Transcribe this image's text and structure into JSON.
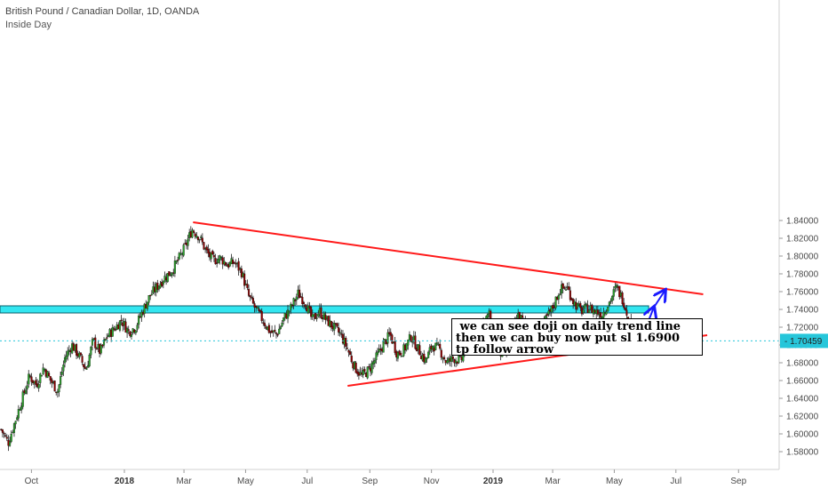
{
  "header": {
    "title": "British Pound / Canadian Dollar, 1D, OANDA",
    "subtitle": "Inside Day"
  },
  "note": {
    "lines": [
      " we can see doji on daily trend line",
      "then we can buy now put sl 1.6900",
      "tp follow arrow"
    ]
  },
  "colors": {
    "candle_up": "#2ca02c",
    "candle_down": "#8b0000",
    "trendline": "#ff1a1a",
    "zone_fill": "#33e6f0",
    "arrow": "#1a1aff",
    "price_badge": "#26c6da"
  },
  "chart_data": {
    "type": "candlestick",
    "title": "British Pound / Canadian Dollar, 1D, OANDA",
    "subtitle": "Inside Day",
    "ylim": [
      1.57,
      1.85
    ],
    "y_ticks": [
      "1.84000",
      "1.82000",
      "1.80000",
      "1.78000",
      "1.76000",
      "1.74000",
      "1.72000",
      "1.70000",
      "1.68000",
      "1.66000",
      "1.64000",
      "1.62000",
      "1.60000",
      "1.58000"
    ],
    "x_ticks": [
      {
        "label": "Oct",
        "date": "2017-10-01",
        "bold": false
      },
      {
        "label": "2018",
        "date": "2018-01-01",
        "bold": true
      },
      {
        "label": "Mar",
        "date": "2018-03-01",
        "bold": false
      },
      {
        "label": "May",
        "date": "2018-05-01",
        "bold": false
      },
      {
        "label": "Jul",
        "date": "2018-07-01",
        "bold": false
      },
      {
        "label": "Sep",
        "date": "2018-09-01",
        "bold": false
      },
      {
        "label": "Nov",
        "date": "2018-11-01",
        "bold": false
      },
      {
        "label": "2019",
        "date": "2019-01-01",
        "bold": true
      },
      {
        "label": "Mar",
        "date": "2019-03-01",
        "bold": false
      },
      {
        "label": "May",
        "date": "2019-05-01",
        "bold": false
      },
      {
        "label": "Jul",
        "date": "2019-07-01",
        "bold": false
      },
      {
        "label": "Sep",
        "date": "2019-09-01",
        "bold": false
      }
    ],
    "last_price": "1.70459",
    "close_path": [
      [
        "2017-09-01",
        1.605
      ],
      [
        "2017-09-08",
        1.59
      ],
      [
        "2017-09-15",
        1.615
      ],
      [
        "2017-09-22",
        1.64
      ],
      [
        "2017-09-29",
        1.665
      ],
      [
        "2017-10-06",
        1.655
      ],
      [
        "2017-10-13",
        1.675
      ],
      [
        "2017-10-20",
        1.66
      ],
      [
        "2017-10-27",
        1.648
      ],
      [
        "2017-11-03",
        1.685
      ],
      [
        "2017-11-10",
        1.7
      ],
      [
        "2017-11-17",
        1.688
      ],
      [
        "2017-11-24",
        1.672
      ],
      [
        "2017-12-01",
        1.705
      ],
      [
        "2017-12-08",
        1.692
      ],
      [
        "2017-12-15",
        1.71
      ],
      [
        "2017-12-22",
        1.718
      ],
      [
        "2017-12-29",
        1.728
      ],
      [
        "2018-01-05",
        1.715
      ],
      [
        "2018-01-12",
        1.72
      ],
      [
        "2018-01-19",
        1.738
      ],
      [
        "2018-01-26",
        1.755
      ],
      [
        "2018-02-02",
        1.765
      ],
      [
        "2018-02-09",
        1.775
      ],
      [
        "2018-02-16",
        1.782
      ],
      [
        "2018-02-23",
        1.795
      ],
      [
        "2018-03-02",
        1.81
      ],
      [
        "2018-03-09",
        1.83
      ],
      [
        "2018-03-16",
        1.822
      ],
      [
        "2018-03-23",
        1.805
      ],
      [
        "2018-03-30",
        1.795
      ],
      [
        "2018-04-06",
        1.798
      ],
      [
        "2018-04-13",
        1.79
      ],
      [
        "2018-04-20",
        1.793
      ],
      [
        "2018-04-27",
        1.782
      ],
      [
        "2018-05-04",
        1.755
      ],
      [
        "2018-05-11",
        1.74
      ],
      [
        "2018-05-18",
        1.728
      ],
      [
        "2018-05-25",
        1.715
      ],
      [
        "2018-06-01",
        1.712
      ],
      [
        "2018-06-08",
        1.73
      ],
      [
        "2018-06-15",
        1.742
      ],
      [
        "2018-06-22",
        1.758
      ],
      [
        "2018-06-29",
        1.748
      ],
      [
        "2018-07-06",
        1.728
      ],
      [
        "2018-07-13",
        1.738
      ],
      [
        "2018-07-20",
        1.728
      ],
      [
        "2018-07-27",
        1.72
      ],
      [
        "2018-08-03",
        1.712
      ],
      [
        "2018-08-10",
        1.695
      ],
      [
        "2018-08-17",
        1.675
      ],
      [
        "2018-08-24",
        1.665
      ],
      [
        "2018-08-31",
        1.672
      ],
      [
        "2018-09-07",
        1.685
      ],
      [
        "2018-09-14",
        1.7
      ],
      [
        "2018-09-21",
        1.712
      ],
      [
        "2018-09-28",
        1.69
      ],
      [
        "2018-10-05",
        1.695
      ],
      [
        "2018-10-12",
        1.71
      ],
      [
        "2018-10-19",
        1.695
      ],
      [
        "2018-10-26",
        1.682
      ],
      [
        "2018-11-02",
        1.7
      ],
      [
        "2018-11-09",
        1.695
      ],
      [
        "2018-11-16",
        1.68
      ],
      [
        "2018-11-23",
        1.685
      ],
      [
        "2018-11-30",
        1.682
      ],
      [
        "2018-12-07",
        1.7
      ],
      [
        "2018-12-14",
        1.71
      ],
      [
        "2018-12-21",
        1.725
      ],
      [
        "2018-12-28",
        1.735
      ],
      [
        "2019-01-04",
        1.695
      ],
      [
        "2019-01-11",
        1.688
      ],
      [
        "2019-01-18",
        1.708
      ],
      [
        "2019-01-25",
        1.735
      ],
      [
        "2019-02-01",
        1.725
      ],
      [
        "2019-02-08",
        1.715
      ],
      [
        "2019-02-15",
        1.708
      ],
      [
        "2019-02-22",
        1.728
      ],
      [
        "2019-03-01",
        1.742
      ],
      [
        "2019-03-08",
        1.762
      ],
      [
        "2019-03-15",
        1.765
      ],
      [
        "2019-03-22",
        1.748
      ],
      [
        "2019-03-29",
        1.738
      ],
      [
        "2019-04-05",
        1.742
      ],
      [
        "2019-04-12",
        1.738
      ],
      [
        "2019-04-19",
        1.735
      ],
      [
        "2019-04-26",
        1.748
      ],
      [
        "2019-05-03",
        1.765
      ],
      [
        "2019-05-10",
        1.75
      ],
      [
        "2019-05-17",
        1.722
      ],
      [
        "2019-05-24",
        1.71
      ],
      [
        "2019-05-31",
        1.705
      ]
    ],
    "annotations": {
      "upper_trendline": [
        [
          "2018-03-10",
          1.838
        ],
        [
          "2019-07-28",
          1.757
        ]
      ],
      "lower_trendline": [
        [
          "2018-08-10",
          1.654
        ],
        [
          "2019-08-01",
          1.711
        ]
      ],
      "zone": {
        "from": "2017-08-01",
        "to": "2019-06-04",
        "low": 1.736,
        "high": 1.744
      },
      "arrow": [
        [
          "2019-05-27",
          1.704
        ],
        [
          "2019-06-09",
          1.742
        ],
        [
          "2019-06-20",
          1.761
        ]
      ]
    }
  }
}
